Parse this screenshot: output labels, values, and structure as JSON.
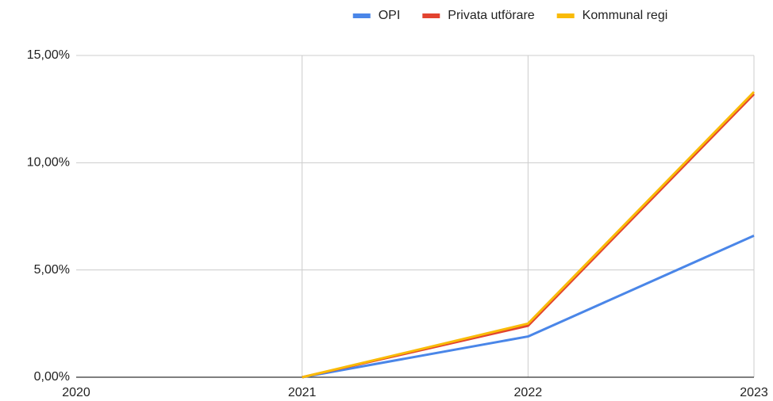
{
  "chart_data": {
    "type": "line",
    "categories": [
      "2020",
      "2021",
      "2022",
      "2023"
    ],
    "series": [
      {
        "name": "OPI",
        "color": "#4a86e8",
        "values": [
          null,
          0,
          1.9,
          6.6
        ]
      },
      {
        "name": "Privata utförare",
        "color": "#e2432f",
        "values": [
          null,
          0,
          2.4,
          13.2
        ]
      },
      {
        "name": "Kommunal regi",
        "color": "#f9bb08",
        "values": [
          null,
          0,
          2.5,
          13.3
        ]
      }
    ],
    "ylim": [
      0,
      15
    ],
    "yticks": [
      {
        "value": 0,
        "label": "0,00%"
      },
      {
        "value": 5,
        "label": "5,00%"
      },
      {
        "value": 10,
        "label": "10,00%"
      },
      {
        "value": 15,
        "label": "15,00%"
      }
    ],
    "grid": true,
    "legend": "top"
  }
}
